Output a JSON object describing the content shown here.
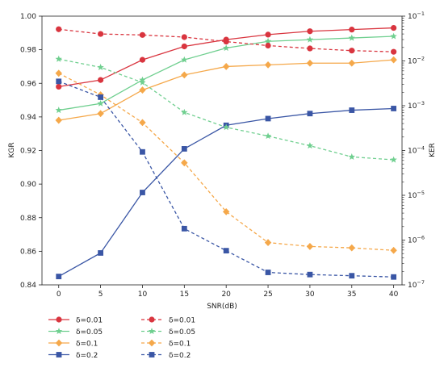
{
  "chart_data": {
    "type": "line",
    "xlabel": "SNR(dB)",
    "ylabel_left": "KGR",
    "ylabel_right": "KER",
    "x": [
      0,
      5,
      10,
      15,
      20,
      25,
      30,
      35,
      40
    ],
    "x_ticks": [
      "0",
      "5",
      "10",
      "15",
      "20",
      "25",
      "30",
      "35",
      "40"
    ],
    "xlim": [
      -2,
      41
    ],
    "ylim_left": [
      0.84,
      1.0
    ],
    "left_ticks": [
      "0.84",
      "0.86",
      "0.88",
      "0.90",
      "0.92",
      "0.94",
      "0.96",
      "0.98",
      "1.00"
    ],
    "right_scale": "log",
    "ylim_right": [
      1e-07,
      0.1
    ],
    "right_ticks": [
      {
        "mantissa": "10",
        "exp": "−7"
      },
      {
        "mantissa": "10",
        "exp": "−6"
      },
      {
        "mantissa": "10",
        "exp": "−5"
      },
      {
        "mantissa": "10",
        "exp": "−4"
      },
      {
        "mantissa": "10",
        "exp": "−3"
      },
      {
        "mantissa": "10",
        "exp": "−2"
      },
      {
        "mantissa": "10",
        "exp": "−1"
      }
    ],
    "grid": false,
    "legend_position": "bottom",
    "series": [
      {
        "name": "δ=0.01",
        "axis": "left",
        "style": "solid",
        "marker": "circle",
        "color": "#d9353f",
        "values": [
          0.958,
          0.962,
          0.974,
          0.982,
          0.986,
          0.989,
          0.991,
          0.992,
          0.993
        ]
      },
      {
        "name": "δ=0.05",
        "axis": "left",
        "style": "solid",
        "marker": "star",
        "color": "#6fcf8f",
        "values": [
          0.944,
          0.948,
          0.962,
          0.974,
          0.981,
          0.985,
          0.986,
          0.987,
          0.988
        ]
      },
      {
        "name": "δ=0.1",
        "axis": "left",
        "style": "solid",
        "marker": "diamond",
        "color": "#f5a84a",
        "values": [
          0.938,
          0.942,
          0.956,
          0.965,
          0.97,
          0.971,
          0.972,
          0.972,
          0.974
        ]
      },
      {
        "name": "δ=0.2",
        "axis": "left",
        "style": "solid",
        "marker": "square",
        "color": "#3a56a5",
        "values": [
          0.845,
          0.859,
          0.895,
          0.921,
          0.935,
          0.939,
          0.942,
          0.944,
          0.945
        ]
      },
      {
        "name": "δ=0.01",
        "axis": "right",
        "style": "dashed",
        "marker": "circle",
        "color": "#d9353f",
        "values": [
          0.051,
          0.04,
          0.038,
          0.034,
          0.027,
          0.022,
          0.019,
          0.017,
          0.016
        ]
      },
      {
        "name": "δ=0.05",
        "axis": "right",
        "style": "dashed",
        "marker": "star",
        "color": "#6fcf8f",
        "values": [
          0.011,
          0.0072,
          0.0033,
          0.00071,
          0.00033,
          0.00021,
          0.000128,
          7.2e-05,
          6.2e-05
        ]
      },
      {
        "name": "δ=0.1",
        "axis": "right",
        "style": "dashed",
        "marker": "diamond",
        "color": "#f5a84a",
        "values": [
          0.0053,
          0.00175,
          0.00042,
          5.3e-05,
          4.3e-06,
          8.8e-07,
          7.2e-07,
          6.7e-07,
          5.9e-07
        ]
      },
      {
        "name": "δ=0.2",
        "axis": "right",
        "style": "dashed",
        "marker": "square",
        "color": "#3a56a5",
        "values": [
          0.0035,
          0.00155,
          9.3e-05,
          1.8e-06,
          5.8e-07,
          1.9e-07,
          1.7e-07,
          1.6e-07,
          1.5e-07
        ]
      }
    ]
  }
}
